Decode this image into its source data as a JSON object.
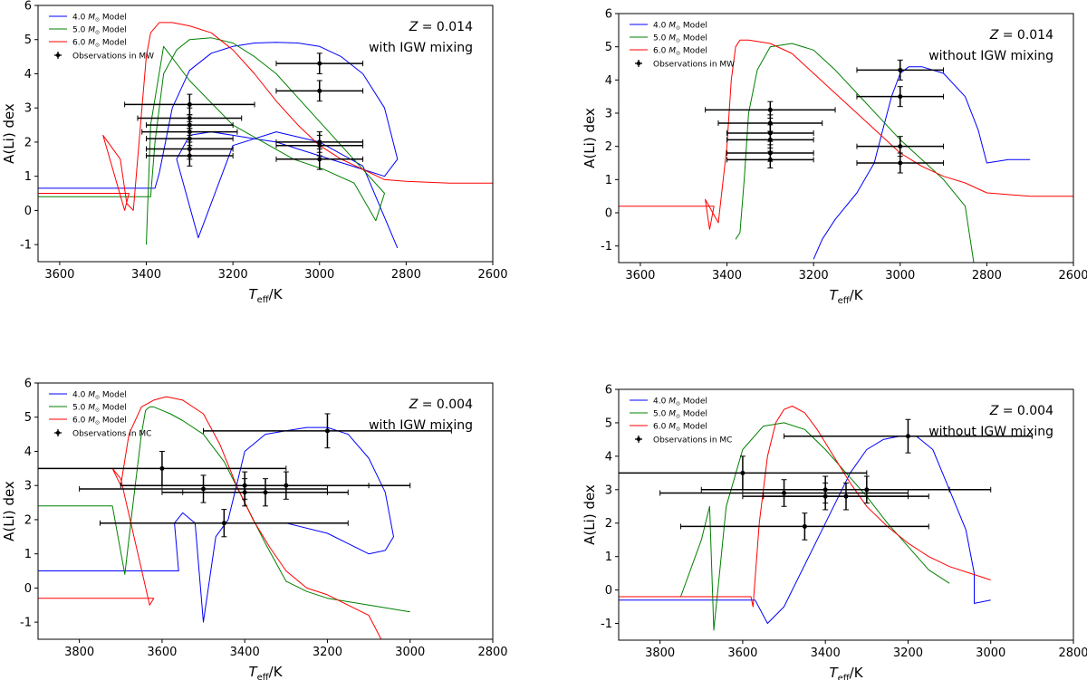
{
  "legend_labels": {
    "m4": "4.0 M⊙ Model",
    "m5": "5.0 M⊙ Model",
    "m6": "6.0 M⊙ Model"
  },
  "colors": {
    "m4": "#0000ff",
    "m5": "#008000",
    "m6": "#ff0000",
    "obs": "#000000"
  },
  "chart_data": [
    {
      "type": "line",
      "panel": "top-left",
      "title": "",
      "annotations": [
        "Z = 0.014",
        "with IGW mixing"
      ],
      "xlabel": "Teff/K",
      "ylabel": "A(Li) dex",
      "xlim": [
        3650,
        2600
      ],
      "ylim": [
        -1.5,
        6
      ],
      "xticks": [
        3600,
        3400,
        3200,
        3000,
        2800,
        2600
      ],
      "yticks": [
        -1,
        0,
        1,
        2,
        3,
        4,
        5,
        6
      ],
      "obs_label": "Observations in MW",
      "series": [
        {
          "name": "4.0 M⊙ Model",
          "key": "m4",
          "x": [
            3650,
            3380,
            3370,
            3340,
            3300,
            3250,
            3200,
            3150,
            3100,
            3050,
            3000,
            2950,
            2900,
            2850,
            2820,
            2850,
            2900,
            2950,
            3000,
            3050,
            3100,
            3150,
            3200,
            3250,
            3300,
            3330,
            3280,
            3200,
            3100,
            3000,
            2900,
            2820
          ],
          "y": [
            0.65,
            0.65,
            1.1,
            3.0,
            4.1,
            4.6,
            4.8,
            4.9,
            4.92,
            4.9,
            4.8,
            4.5,
            4.0,
            3.0,
            1.5,
            1.0,
            1.2,
            1.4,
            1.6,
            1.8,
            2.0,
            2.1,
            2.2,
            2.3,
            2.2,
            1.5,
            -0.8,
            1.9,
            2.3,
            2.0,
            1.3,
            -1.1
          ]
        },
        {
          "name": "5.0 M⊙ Model",
          "key": "m5",
          "x": [
            3650,
            3390,
            3380,
            3360,
            3330,
            3300,
            3250,
            3200,
            3150,
            3100,
            3050,
            3000,
            2950,
            2900,
            2850,
            2870,
            2920,
            2990,
            3060,
            3200,
            3300,
            3360,
            3390,
            3400
          ],
          "y": [
            0.4,
            0.4,
            2.0,
            4.0,
            4.7,
            5.0,
            5.05,
            4.9,
            4.5,
            4.0,
            3.3,
            2.6,
            1.9,
            1.2,
            0.5,
            -0.3,
            0.8,
            1.2,
            1.5,
            2.5,
            3.8,
            4.8,
            2.5,
            -1.0
          ]
        },
        {
          "name": "6.0 M⊙ Model",
          "key": "m6",
          "x": [
            3650,
            3440,
            3450,
            3500,
            3460,
            3445,
            3430,
            3410,
            3400,
            3390,
            3370,
            3340,
            3300,
            3250,
            3200,
            3150,
            3100,
            3050,
            3000,
            2950,
            2900,
            2850,
            2800,
            2700,
            2600
          ],
          "y": [
            0.5,
            0.5,
            0.0,
            2.2,
            1.5,
            0.2,
            0.0,
            3.0,
            4.5,
            5.2,
            5.5,
            5.5,
            5.4,
            5.2,
            4.7,
            4.0,
            3.2,
            2.5,
            1.9,
            1.5,
            1.2,
            0.9,
            0.85,
            0.8,
            0.8
          ]
        }
      ],
      "observations": [
        {
          "teff": 3300,
          "teff_err": 150,
          "ali": 3.1,
          "ali_err": 0.3
        },
        {
          "teff": 3300,
          "teff_err": 120,
          "ali": 2.7,
          "ali_err": 0.3
        },
        {
          "teff": 3300,
          "teff_err": 100,
          "ali": 2.5,
          "ali_err": 0.3
        },
        {
          "teff": 3300,
          "teff_err": 110,
          "ali": 2.3,
          "ali_err": 0.3
        },
        {
          "teff": 3300,
          "teff_err": 100,
          "ali": 2.1,
          "ali_err": 0.3
        },
        {
          "teff": 3300,
          "teff_err": 100,
          "ali": 1.8,
          "ali_err": 0.3
        },
        {
          "teff": 3300,
          "teff_err": 100,
          "ali": 1.6,
          "ali_err": 0.3
        },
        {
          "teff": 3000,
          "teff_err": 100,
          "ali": 4.3,
          "ali_err": 0.3
        },
        {
          "teff": 3000,
          "teff_err": 100,
          "ali": 3.5,
          "ali_err": 0.3
        },
        {
          "teff": 3000,
          "teff_err": 100,
          "ali": 2.0,
          "ali_err": 0.3
        },
        {
          "teff": 3000,
          "teff_err": 100,
          "ali": 1.9,
          "ali_err": 0.3
        },
        {
          "teff": 3000,
          "teff_err": 100,
          "ali": 1.5,
          "ali_err": 0.3
        }
      ]
    },
    {
      "type": "line",
      "panel": "top-right",
      "title": "",
      "annotations": [
        "Z = 0.014",
        "without IGW mixing"
      ],
      "xlabel": "Teff/K",
      "ylabel": "A(Li) dex",
      "xlim": [
        3650,
        2600
      ],
      "ylim": [
        -1.5,
        6
      ],
      "xticks": [
        3600,
        3400,
        3200,
        3000,
        2800,
        2600
      ],
      "yticks": [
        -1,
        0,
        1,
        2,
        3,
        4,
        5,
        6
      ],
      "obs_label": "Observations in MW",
      "series": [
        {
          "name": "4.0 M⊙ Model",
          "key": "m4",
          "x": [
            3200,
            3180,
            3150,
            3100,
            3060,
            3040,
            3020,
            3000,
            2980,
            2950,
            2900,
            2850,
            2820,
            2800,
            2750,
            2700
          ],
          "y": [
            -1.4,
            -0.8,
            -0.2,
            0.6,
            1.5,
            2.5,
            3.5,
            4.2,
            4.4,
            4.4,
            4.2,
            3.5,
            2.5,
            1.5,
            1.6,
            1.6
          ]
        },
        {
          "name": "5.0 M⊙ Model",
          "key": "m5",
          "x": [
            3380,
            3370,
            3360,
            3350,
            3330,
            3300,
            3250,
            3200,
            3150,
            3100,
            3050,
            3000,
            2950,
            2900,
            2850,
            2830
          ],
          "y": [
            -0.8,
            -0.6,
            1.0,
            3.0,
            4.3,
            5.0,
            5.1,
            4.9,
            4.3,
            3.6,
            2.9,
            2.2,
            1.6,
            1.0,
            0.2,
            -1.5
          ]
        },
        {
          "name": "6.0 M⊙ Model",
          "key": "m6",
          "x": [
            3650,
            3430,
            3440,
            3450,
            3420,
            3400,
            3390,
            3380,
            3370,
            3350,
            3300,
            3250,
            3200,
            3150,
            3100,
            3050,
            3000,
            2950,
            2900,
            2850,
            2800,
            2700,
            2600
          ],
          "y": [
            0.2,
            0.2,
            -0.5,
            0.4,
            -0.3,
            2.0,
            4.0,
            5.0,
            5.2,
            5.2,
            5.1,
            4.8,
            4.2,
            3.6,
            3.0,
            2.4,
            1.8,
            1.4,
            1.1,
            0.9,
            0.6,
            0.5,
            0.5
          ]
        }
      ],
      "observations": [
        {
          "teff": 3300,
          "teff_err": 150,
          "ali": 3.1,
          "ali_err": 0.25
        },
        {
          "teff": 3300,
          "teff_err": 120,
          "ali": 2.7,
          "ali_err": 0.25
        },
        {
          "teff": 3300,
          "teff_err": 100,
          "ali": 2.4,
          "ali_err": 0.25
        },
        {
          "teff": 3300,
          "teff_err": 100,
          "ali": 2.2,
          "ali_err": 0.25
        },
        {
          "teff": 3300,
          "teff_err": 100,
          "ali": 1.8,
          "ali_err": 0.25
        },
        {
          "teff": 3300,
          "teff_err": 100,
          "ali": 1.6,
          "ali_err": 0.25
        },
        {
          "teff": 3000,
          "teff_err": 100,
          "ali": 4.3,
          "ali_err": 0.3
        },
        {
          "teff": 3000,
          "teff_err": 100,
          "ali": 3.5,
          "ali_err": 0.3
        },
        {
          "teff": 3000,
          "teff_err": 100,
          "ali": 2.0,
          "ali_err": 0.3
        },
        {
          "teff": 3000,
          "teff_err": 100,
          "ali": 1.5,
          "ali_err": 0.3
        }
      ]
    },
    {
      "type": "line",
      "panel": "bottom-left",
      "title": "",
      "annotations": [
        "Z = 0.004",
        "with IGW mixing"
      ],
      "xlabel": "Teff/K",
      "ylabel": "A(Li) dex",
      "xlim": [
        3900,
        2800
      ],
      "ylim": [
        -1.5,
        6
      ],
      "xticks": [
        3800,
        3600,
        3400,
        3200,
        3000,
        2800
      ],
      "yticks": [
        -1,
        0,
        1,
        2,
        3,
        4,
        5,
        6
      ],
      "obs_label": "Observations in MC",
      "series": [
        {
          "name": "4.0 M⊙ Model",
          "key": "m4",
          "x": [
            3900,
            3560,
            3570,
            3550,
            3520,
            3500,
            3470,
            3440,
            3420,
            3400,
            3350,
            3300,
            3250,
            3200,
            3150,
            3100,
            3060,
            3040,
            3060,
            3100,
            3200,
            3300,
            3380
          ],
          "y": [
            0.5,
            0.5,
            1.9,
            2.2,
            1.9,
            -1.0,
            1.5,
            2.0,
            3.0,
            4.0,
            4.5,
            4.6,
            4.7,
            4.7,
            4.5,
            3.8,
            2.8,
            1.5,
            1.1,
            1.0,
            1.6,
            1.9,
            1.9
          ]
        },
        {
          "name": "5.0 M⊙ Model",
          "key": "m5",
          "x": [
            3900,
            3720,
            3690,
            3670,
            3650,
            3640,
            3630,
            3620,
            3600,
            3580,
            3550,
            3500,
            3450,
            3400,
            3350,
            3300,
            3250,
            3200,
            3150,
            3100,
            3050,
            3000
          ],
          "y": [
            2.4,
            2.4,
            0.4,
            2.5,
            4.5,
            5.2,
            5.3,
            5.3,
            5.2,
            5.1,
            4.9,
            4.5,
            3.7,
            2.5,
            1.3,
            0.2,
            -0.1,
            -0.3,
            -0.4,
            -0.5,
            -0.6,
            -0.7
          ]
        },
        {
          "name": "6.0 M⊙ Model",
          "key": "m6",
          "x": [
            3900,
            3620,
            3630,
            3700,
            3720,
            3700,
            3680,
            3650,
            3620,
            3590,
            3550,
            3500,
            3460,
            3420,
            3380,
            3340,
            3300,
            3250,
            3200,
            3150,
            3100,
            3070
          ],
          "y": [
            -0.3,
            -0.3,
            -0.5,
            3.2,
            3.5,
            3.0,
            4.5,
            5.3,
            5.5,
            5.6,
            5.5,
            5.1,
            4.2,
            3.0,
            2.0,
            1.2,
            0.5,
            0.0,
            -0.2,
            -0.5,
            -0.8,
            -1.5
          ]
        }
      ],
      "observations": [
        {
          "teff": 3200,
          "teff_err": 300,
          "ali": 4.6,
          "ali_err": 0.5
        },
        {
          "teff": 3600,
          "teff_err": 300,
          "ali": 3.5,
          "ali_err": 0.5
        },
        {
          "teff": 3400,
          "teff_err": 300,
          "ali": 3.0,
          "ali_err": 0.4
        },
        {
          "teff": 3300,
          "teff_err": 300,
          "ali": 3.0,
          "ali_err": 0.4
        },
        {
          "teff": 3500,
          "teff_err": 300,
          "ali": 2.9,
          "ali_err": 0.4
        },
        {
          "teff": 3400,
          "teff_err": 200,
          "ali": 2.8,
          "ali_err": 0.4
        },
        {
          "teff": 3350,
          "teff_err": 200,
          "ali": 2.8,
          "ali_err": 0.4
        },
        {
          "teff": 3450,
          "teff_err": 300,
          "ali": 1.9,
          "ali_err": 0.4
        }
      ]
    },
    {
      "type": "line",
      "panel": "bottom-right",
      "title": "",
      "annotations": [
        "Z = 0.004",
        "without IGW mixing"
      ],
      "xlabel": "Teff/K",
      "ylabel": "A(Li) dex",
      "xlim": [
        3900,
        2800
      ],
      "ylim": [
        -1.5,
        6
      ],
      "xticks": [
        3800,
        3600,
        3400,
        3200,
        3000,
        2800
      ],
      "yticks": [
        -1,
        0,
        1,
        2,
        3,
        4,
        5,
        6
      ],
      "obs_label": "Observations in MC",
      "series": [
        {
          "name": "4.0 M⊙ Model",
          "key": "m4",
          "x": [
            3900,
            3570,
            3540,
            3500,
            3460,
            3420,
            3380,
            3340,
            3300,
            3260,
            3220,
            3180,
            3140,
            3100,
            3060,
            3040,
            3040,
            3000
          ],
          "y": [
            -0.3,
            -0.3,
            -1.0,
            -0.5,
            0.5,
            1.5,
            2.5,
            3.5,
            4.2,
            4.5,
            4.6,
            4.6,
            4.2,
            3.0,
            1.8,
            0.5,
            -0.4,
            -0.3
          ]
        },
        {
          "name": "5.0 M⊙ Model",
          "key": "m5",
          "x": [
            3900,
            3750,
            3700,
            3680,
            3670,
            3660,
            3640,
            3600,
            3550,
            3500,
            3450,
            3400,
            3350,
            3300,
            3250,
            3200,
            3150,
            3100
          ],
          "y": [
            -0.2,
            -0.2,
            1.5,
            2.5,
            -1.2,
            0.0,
            2.5,
            4.2,
            4.9,
            5.0,
            4.8,
            4.2,
            3.5,
            2.8,
            2.0,
            1.3,
            0.6,
            0.2
          ]
        },
        {
          "name": "6.0 M⊙ Model",
          "key": "m6",
          "x": [
            3900,
            3580,
            3575,
            3560,
            3540,
            3520,
            3500,
            3480,
            3450,
            3420,
            3380,
            3340,
            3300,
            3250,
            3200,
            3150,
            3100,
            3050,
            3000
          ],
          "y": [
            -0.2,
            -0.2,
            -0.5,
            2.0,
            4.0,
            5.0,
            5.4,
            5.5,
            5.3,
            4.8,
            4.0,
            3.2,
            2.5,
            1.9,
            1.4,
            1.0,
            0.7,
            0.5,
            0.3
          ]
        }
      ],
      "observations": [
        {
          "teff": 3200,
          "teff_err": 300,
          "ali": 4.6,
          "ali_err": 0.5
        },
        {
          "teff": 3600,
          "teff_err": 300,
          "ali": 3.5,
          "ali_err": 0.5
        },
        {
          "teff": 3400,
          "teff_err": 300,
          "ali": 3.0,
          "ali_err": 0.4
        },
        {
          "teff": 3300,
          "teff_err": 300,
          "ali": 3.0,
          "ali_err": 0.4
        },
        {
          "teff": 3500,
          "teff_err": 300,
          "ali": 2.9,
          "ali_err": 0.4
        },
        {
          "teff": 3400,
          "teff_err": 200,
          "ali": 2.8,
          "ali_err": 0.4
        },
        {
          "teff": 3350,
          "teff_err": 200,
          "ali": 2.8,
          "ali_err": 0.4
        },
        {
          "teff": 3450,
          "teff_err": 300,
          "ali": 1.9,
          "ali_err": 0.4
        }
      ]
    }
  ]
}
